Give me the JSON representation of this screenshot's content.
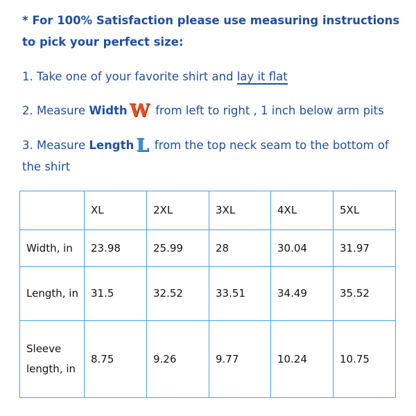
{
  "intro": "* For 100% Satisfaction please use measuring instructions to pick your perfect size:",
  "step1": {
    "text": "1. Take one of your favorite shirt and ",
    "link": "lay it flat"
  },
  "step2": {
    "prefix": "2. Measure ",
    "bold": "Width",
    "letter": "W",
    "suffix": " from left to right , 1 inch below arm pits"
  },
  "step3": {
    "prefix": "3. Measure ",
    "bold": "Length",
    "letter": "L",
    "suffix": " from the top neck seam to the bottom of the shirt"
  },
  "colors": {
    "text": "#1e4fa3",
    "table_border": "#44a2ec"
  },
  "table": {
    "headers": [
      "",
      "XL",
      "2XL",
      "3XL",
      "4XL",
      "5XL"
    ],
    "rows": [
      [
        "Width, in",
        "23.98",
        "25.99",
        "28",
        "30.04",
        "31.97"
      ],
      [
        "Length, in",
        "31.5",
        "32.52",
        "33.51",
        "34.49",
        "35.52"
      ],
      [
        "Sleeve length, in",
        "8.75",
        "9.26",
        "9.77",
        "10.24",
        "10.75"
      ]
    ]
  }
}
